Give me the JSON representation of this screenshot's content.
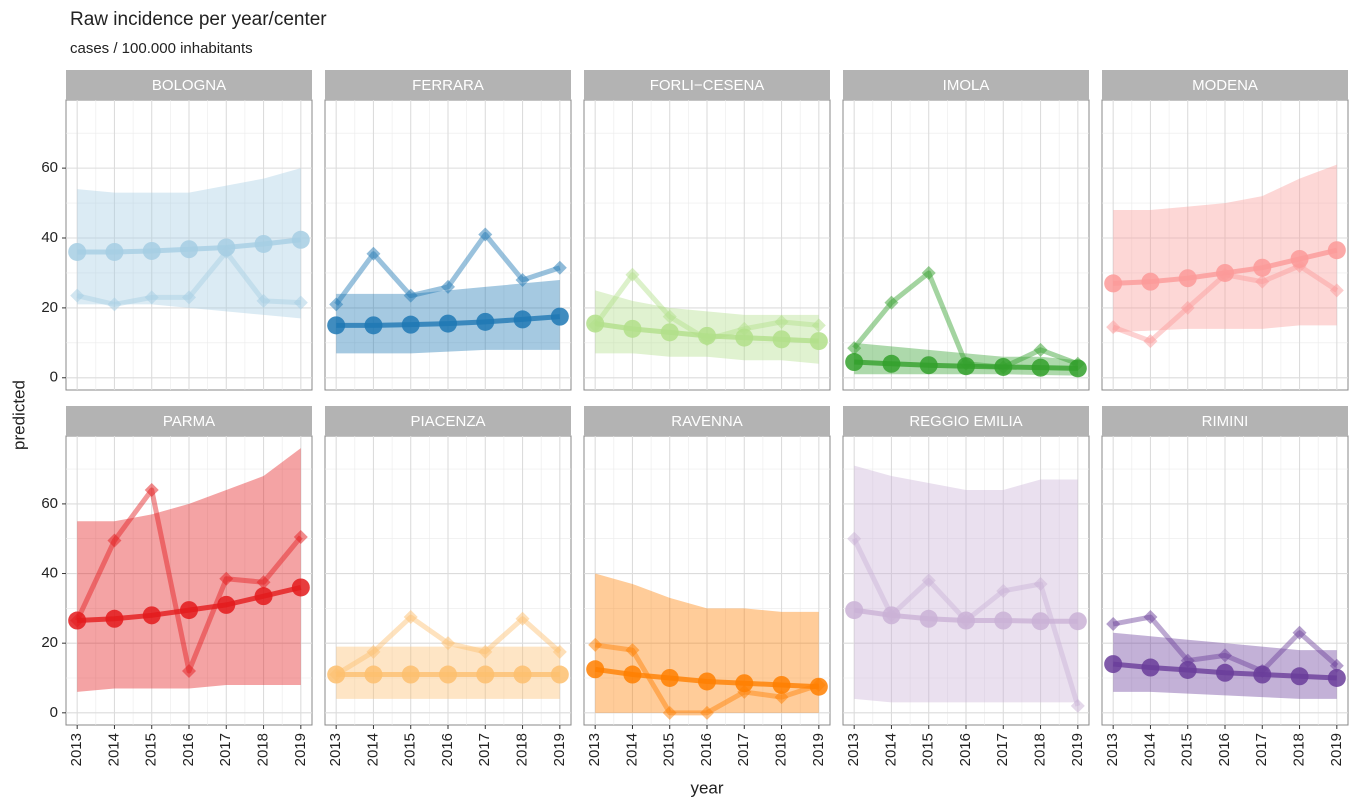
{
  "chart_data": {
    "type": "facet-line",
    "title": "Raw incidence per year/center",
    "subtitle": "cases / 100.000 inhabitants",
    "xlabel": "year",
    "ylabel": "predicted",
    "x": [
      2013,
      2014,
      2015,
      2016,
      2017,
      2018,
      2019
    ],
    "xlim": [
      2012.7,
      2019.3
    ],
    "xticks": [
      2013,
      2014,
      2015,
      2016,
      2017,
      2018,
      2019
    ],
    "ylim": [
      -3.5,
      79.5
    ],
    "yticks": [
      0,
      20,
      40,
      60
    ],
    "grid": true,
    "facets": [
      {
        "title": "BOLOGNA",
        "color": "#a6cee3",
        "predicted": [
          36,
          36,
          36.3,
          36.8,
          37.3,
          38.3,
          39.5
        ],
        "raw": [
          23.5,
          21,
          23,
          23,
          36,
          22,
          21.5
        ],
        "lower": [
          21,
          21,
          21,
          20,
          19,
          18,
          17
        ],
        "upper": [
          54,
          53,
          53,
          53,
          55,
          57,
          60
        ]
      },
      {
        "title": "FERRARA",
        "color": "#1f78b4",
        "predicted": [
          15,
          15,
          15.2,
          15.5,
          16,
          16.7,
          17.5
        ],
        "raw": [
          21,
          35.5,
          23.5,
          26,
          41,
          28,
          31.5
        ],
        "lower": [
          7,
          7,
          7,
          7.5,
          8,
          8,
          8
        ],
        "upper": [
          24,
          24,
          24,
          25,
          26,
          27,
          28
        ]
      },
      {
        "title": "FORLI−CESENA",
        "color": "#b2df8a",
        "predicted": [
          15.5,
          14,
          13,
          12,
          11.5,
          11,
          10.5
        ],
        "raw": [
          15,
          29.5,
          17.5,
          11,
          14,
          16,
          15
        ],
        "lower": [
          7,
          7,
          6,
          6,
          5,
          5,
          4
        ],
        "upper": [
          25,
          22,
          20,
          19,
          18,
          18,
          18
        ]
      },
      {
        "title": "IMOLA",
        "color": "#33a02c",
        "predicted": [
          4.5,
          4,
          3.6,
          3.3,
          3.1,
          2.9,
          2.7
        ],
        "raw": [
          8.5,
          21.5,
          30,
          4,
          3,
          8,
          4
        ],
        "lower": [
          1,
          1,
          1,
          1,
          1,
          0.8,
          0.6
        ],
        "upper": [
          10,
          9,
          8,
          7,
          6,
          6,
          5
        ]
      },
      {
        "title": "MODENA",
        "color": "#fb9a99",
        "predicted": [
          27,
          27.5,
          28.5,
          30,
          31.5,
          34,
          36.5
        ],
        "raw": [
          14.5,
          10.5,
          20,
          29.5,
          27.5,
          32,
          25
        ],
        "lower": [
          13,
          13.5,
          14,
          14,
          14,
          15,
          15
        ],
        "upper": [
          48,
          48,
          49,
          50,
          52,
          57,
          61
        ]
      },
      {
        "title": "PARMA",
        "color": "#e31a1c",
        "predicted": [
          26.5,
          27,
          28,
          29.5,
          31,
          33.5,
          36
        ],
        "raw": [
          26.5,
          49.5,
          64,
          12,
          38.5,
          37.5,
          50.5
        ],
        "lower": [
          6,
          7,
          7,
          7,
          8,
          8,
          8
        ],
        "upper": [
          55,
          55,
          57,
          60,
          64,
          68,
          76
        ]
      },
      {
        "title": "PIACENZA",
        "color": "#fdbf6f",
        "predicted": [
          11,
          11,
          11,
          11,
          11,
          11,
          11
        ],
        "raw": [
          11,
          17.5,
          27.5,
          20,
          17.5,
          27,
          17.5
        ],
        "lower": [
          4,
          4,
          4,
          4,
          4,
          4,
          4
        ],
        "upper": [
          19,
          19,
          19,
          19,
          19,
          19,
          19
        ]
      },
      {
        "title": "RAVENNA",
        "color": "#ff7f00",
        "predicted": [
          12.5,
          11,
          10,
          9,
          8.5,
          8,
          7.5
        ],
        "raw": [
          19.5,
          18,
          0,
          0,
          6,
          4.5,
          8
        ],
        "lower": [
          0,
          0,
          0,
          0,
          0,
          0,
          0
        ],
        "upper": [
          40,
          37,
          33,
          30,
          30,
          29,
          29
        ]
      },
      {
        "title": "REGGIO EMILIA",
        "color": "#cab2d6",
        "predicted": [
          29.5,
          28,
          27,
          26.5,
          26.5,
          26.3,
          26.3
        ],
        "raw": [
          50,
          28,
          38,
          26.5,
          35,
          37,
          2
        ],
        "lower": [
          4,
          3,
          3,
          3,
          3,
          3,
          3
        ],
        "upper": [
          71,
          68,
          66,
          64,
          64,
          67,
          67
        ]
      },
      {
        "title": "RIMINI",
        "color": "#6a3d9a",
        "predicted": [
          14,
          13,
          12.3,
          11.5,
          11,
          10.5,
          10
        ],
        "raw": [
          25.5,
          27.5,
          15,
          16.5,
          12,
          23,
          13.5
        ],
        "lower": [
          6,
          6,
          5.5,
          5,
          4.5,
          4,
          4
        ],
        "upper": [
          23,
          22,
          21,
          20,
          19,
          18,
          18
        ]
      }
    ]
  }
}
